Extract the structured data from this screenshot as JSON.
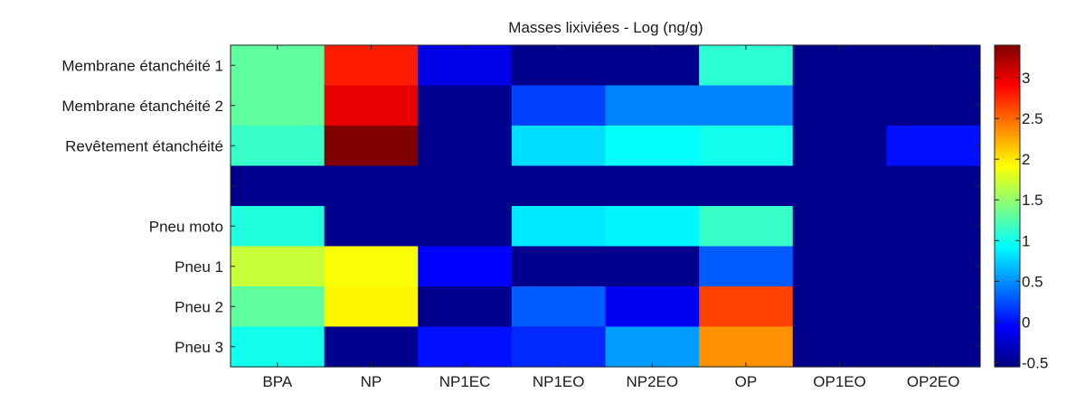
{
  "chart_data": {
    "type": "heatmap",
    "title": "Masses lixiviées  - Log (ng/g)",
    "xlabel": "",
    "ylabel": "",
    "x_categories": [
      "BPA",
      "NP",
      "NP1EC",
      "NP1EO",
      "NP2EO",
      "OP",
      "OP1EO",
      "OP2EO"
    ],
    "y_categories": [
      "Membrane étanchéité 1",
      "Membrane étanchéité 2",
      "Revêtement étanchéité",
      "",
      "Pneu moto",
      "Pneu 1",
      "Pneu 2",
      "Pneu 3"
    ],
    "values": [
      [
        1.3,
        2.8,
        -0.15,
        -0.5,
        -0.5,
        1.1,
        -0.5,
        -0.5
      ],
      [
        1.3,
        3.0,
        -0.5,
        0.2,
        0.45,
        0.45,
        -0.5,
        -0.5
      ],
      [
        1.15,
        3.4,
        -0.5,
        0.8,
        0.95,
        1.0,
        -0.5,
        0.0
      ],
      [
        -0.5,
        -0.5,
        -0.5,
        -0.5,
        -0.5,
        -0.5,
        -0.5,
        -0.5
      ],
      [
        1.05,
        -0.5,
        -0.5,
        0.85,
        0.9,
        1.15,
        -0.5,
        -0.5
      ],
      [
        1.7,
        1.9,
        -0.05,
        -0.5,
        -0.5,
        0.3,
        -0.5,
        -0.5
      ],
      [
        1.3,
        1.95,
        -0.5,
        0.3,
        -0.1,
        2.65,
        -0.5,
        -0.5
      ],
      [
        1.0,
        -0.5,
        0.0,
        0.1,
        0.55,
        2.35,
        -0.5,
        -0.5
      ]
    ],
    "colorbar": {
      "min": -0.55,
      "max": 3.4,
      "ticks": [
        -0.5,
        0,
        0.5,
        1,
        1.5,
        2,
        2.5,
        3
      ],
      "tick_labels": [
        "-0.5",
        "0",
        "0.5",
        "1",
        "1.5",
        "2",
        "2.5",
        "3"
      ],
      "colormap": "jet"
    },
    "grid": false
  }
}
